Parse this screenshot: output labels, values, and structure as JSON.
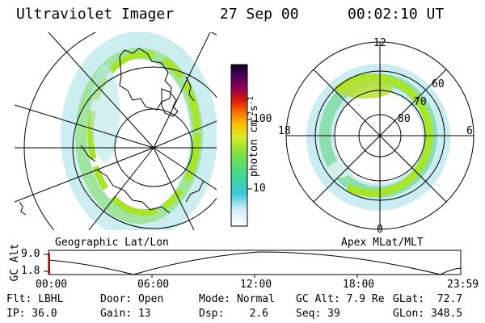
{
  "header": {
    "instrument": "Ultraviolet Imager",
    "date": "27 Sep 00",
    "time": "00:02:10 UT"
  },
  "colorbar": {
    "label": "photon cm",
    "label_sup1": "-2",
    "label_s": "s",
    "label_sup2": "-1",
    "ticks": [
      "100",
      "10"
    ]
  },
  "left_panel": {
    "caption": "Geographic Lat/Lon"
  },
  "right_panel": {
    "caption": "Apex MLat/MLT",
    "mlt_labels": {
      "top": "12",
      "left": "18",
      "right": "6",
      "bottom": "0"
    },
    "lat_labels": [
      "60",
      "70",
      "80"
    ]
  },
  "altitude_plot": {
    "ylabel": "GC Alt",
    "y_ticks": [
      "9.0",
      "1.8"
    ],
    "x_ticks": [
      "00:00",
      "06:00",
      "12:00",
      "18:00",
      "23:59"
    ]
  },
  "footer": {
    "row1": {
      "flt": "Flt: LBHL",
      "door": "Door: Open",
      "mode": "Mode: Normal",
      "gcalt": "GC Alt: 7.9 Re",
      "glat": "GLat:  72.7"
    },
    "row2": {
      "ip": "IP: 36.0",
      "gain": "Gain: 13",
      "dsp": "Dsp:    2.6",
      "seq": "Seq: 39",
      "glon": "GLon: 348.5"
    }
  }
}
